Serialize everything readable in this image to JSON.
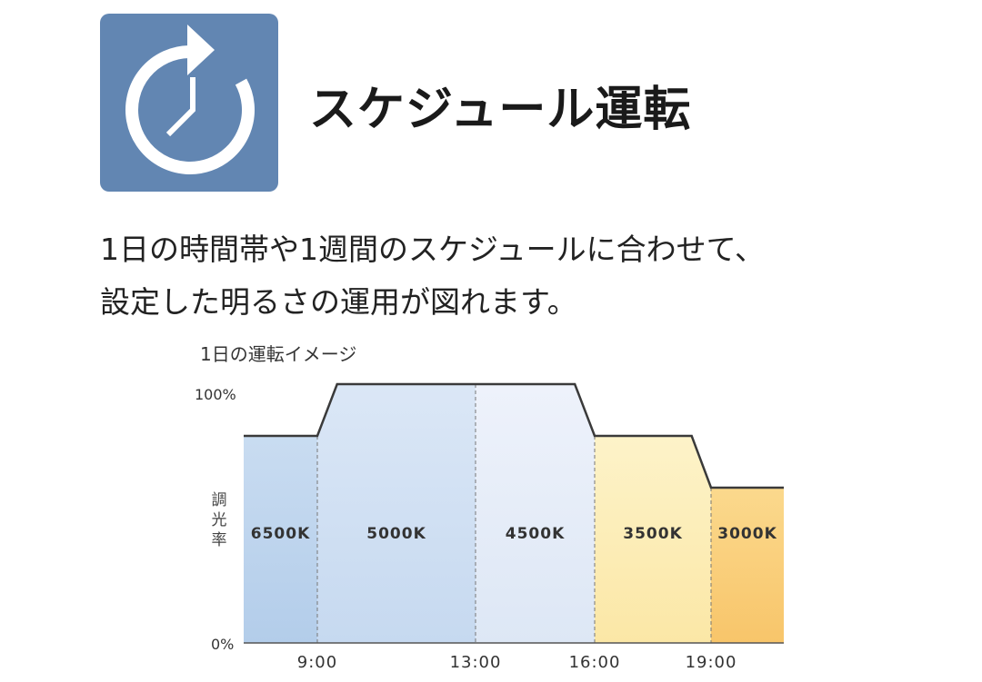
{
  "header": {
    "icon": "clock-rotate-icon",
    "icon_color": "#6286b2",
    "title": "スケジュール運転"
  },
  "description": {
    "line1": "1日の時間帯や1週間のスケジュールに合わせて、",
    "line2": "設定した明るさの運用が図れます。"
  },
  "chart_data": {
    "type": "area",
    "title": "1日の運転イメージ",
    "ylabel": "調光率",
    "yticks": [
      "100%",
      "0%"
    ],
    "ylim": [
      0,
      100
    ],
    "x_ticks": [
      "9:00",
      "13:00",
      "16:00",
      "19:00"
    ],
    "x_range_hours": [
      7,
      21.5
    ],
    "profile": [
      {
        "hour": 7,
        "value": 80
      },
      {
        "hour": 9,
        "value": 80
      },
      {
        "hour": 9.5,
        "value": 100
      },
      {
        "hour": 15.5,
        "value": 100
      },
      {
        "hour": 16,
        "value": 80
      },
      {
        "hour": 18.5,
        "value": 80
      },
      {
        "hour": 19,
        "value": 60
      },
      {
        "hour": 21.5,
        "value": 60
      }
    ],
    "segments": [
      {
        "label": "6500K",
        "start": 7,
        "end": 9,
        "color_top": "#c9dcf1",
        "color_bottom": "#b3cdea"
      },
      {
        "label": "5000K",
        "start": 9,
        "end": 13,
        "color_top": "#dbe7f6",
        "color_bottom": "#c6d9f0"
      },
      {
        "label": "4500K",
        "start": 13,
        "end": 16,
        "color_top": "#eef2fb",
        "color_bottom": "#dde7f5"
      },
      {
        "label": "3500K",
        "start": 16,
        "end": 19,
        "color_top": "#fdf3c9",
        "color_bottom": "#fbe7a6"
      },
      {
        "label": "3000K",
        "start": 19,
        "end": 21.5,
        "color_top": "#fbd98d",
        "color_bottom": "#f8c56a"
      }
    ]
  }
}
